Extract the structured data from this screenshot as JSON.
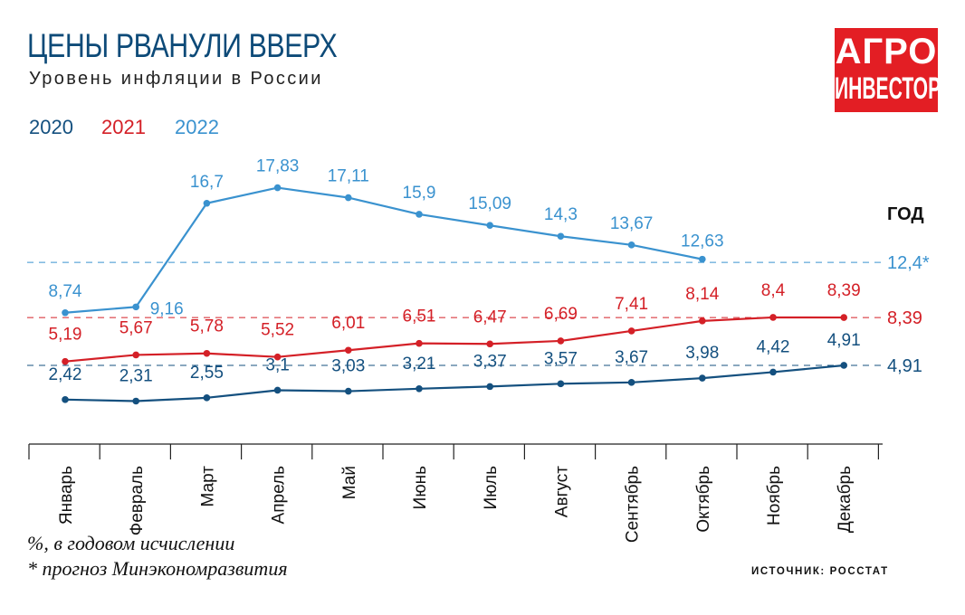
{
  "header": {
    "title": "ЦЕНЫ РВАНУЛИ ВВЕРХ",
    "subtitle": "Уровень инфляции в России"
  },
  "logo": {
    "line1": "АГРО",
    "line2": "ИНВЕСТОР",
    "color": "#e31e24"
  },
  "notes": {
    "unit": "%, в годовом исчислении",
    "forecast": "* прогноз Минэкономразвития",
    "source": "ИСТОЧНИК: РОССТАТ"
  },
  "chart_data": {
    "type": "line",
    "categories": [
      "Январь",
      "Февраль",
      "Март",
      "Апрель",
      "Май",
      "Июнь",
      "Июль",
      "Август",
      "Сентябрь",
      "Октябрь",
      "Ноябрь",
      "Декабрь"
    ],
    "series": [
      {
        "name": "2020",
        "color": "#14507f",
        "values": [
          2.42,
          2.31,
          2.55,
          3.1,
          3.03,
          3.21,
          3.37,
          3.57,
          3.67,
          3.98,
          4.42,
          4.91
        ],
        "labels": [
          "2,42",
          "2,31",
          "2,55",
          "3,1",
          "3,03",
          "3,21",
          "3,37",
          "3,57",
          "3,67",
          "3,98",
          "4,42",
          "4,91"
        ]
      },
      {
        "name": "2021",
        "color": "#d42027",
        "values": [
          5.19,
          5.67,
          5.78,
          5.52,
          6.01,
          6.51,
          6.47,
          6.69,
          7.41,
          8.14,
          8.4,
          8.39
        ],
        "labels": [
          "5,19",
          "5,67",
          "5,78",
          "5,52",
          "6,01",
          "6,51",
          "6,47",
          "6,69",
          "7,41",
          "8,14",
          "8,4",
          "8,39"
        ]
      },
      {
        "name": "2022",
        "color": "#3a92cf",
        "values": [
          8.74,
          9.16,
          16.7,
          17.83,
          17.11,
          15.9,
          15.09,
          14.3,
          13.67,
          12.63,
          null,
          null
        ],
        "labels": [
          "8,74",
          "9,16",
          "16,7",
          "17,83",
          "17,11",
          "15,9",
          "15,09",
          "14,3",
          "13,67",
          "12,63",
          null,
          null
        ]
      }
    ],
    "annual": {
      "title": "ГОД",
      "items": [
        {
          "series": "2022",
          "value": 12.4,
          "label": "12,4*"
        },
        {
          "series": "2021",
          "value": 8.39,
          "label": "8,39"
        },
        {
          "series": "2020",
          "value": 4.91,
          "label": "4,91"
        }
      ]
    },
    "legend_placement": "top-left",
    "grid": false
  }
}
